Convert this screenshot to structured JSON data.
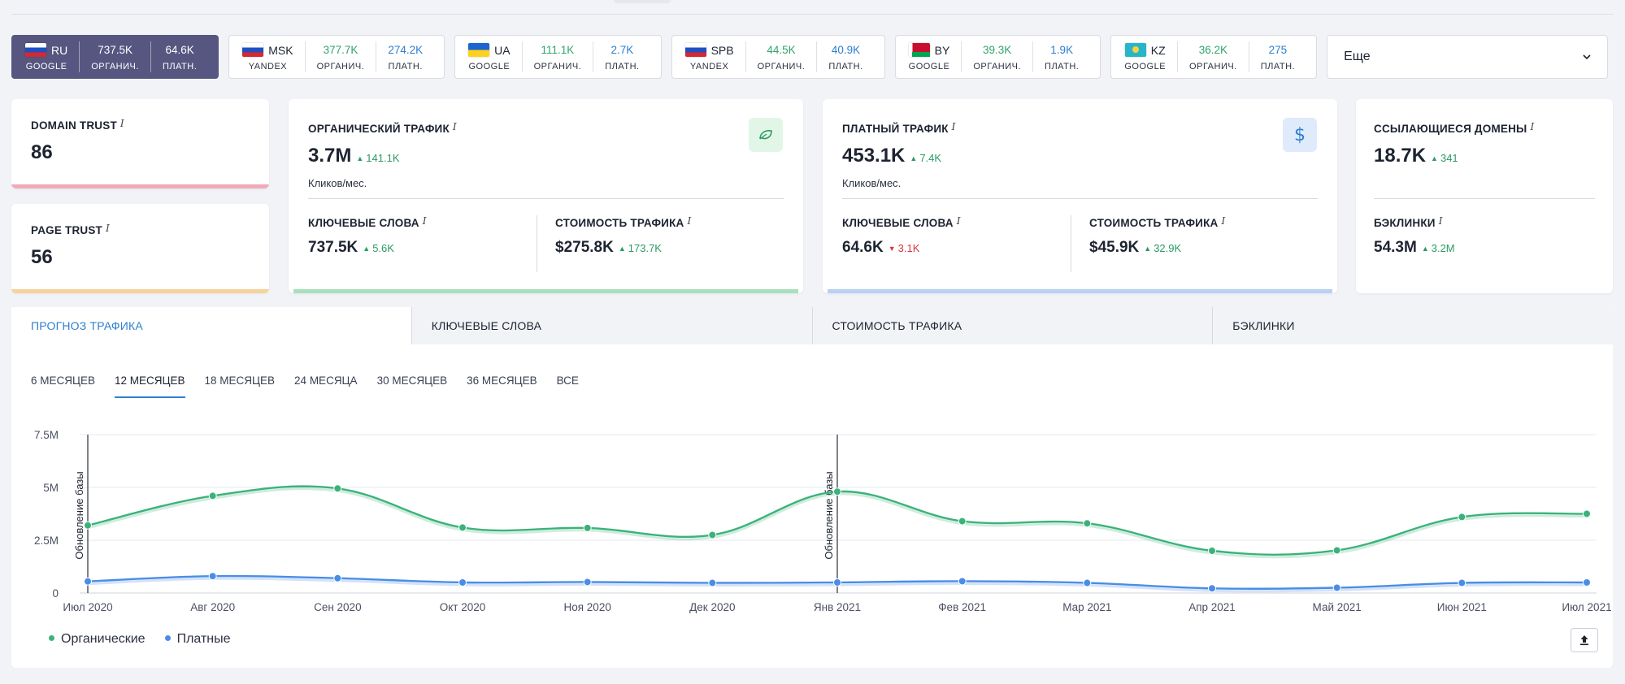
{
  "regions": [
    {
      "code": "RU",
      "engine": "GOOGLE",
      "organic": "737.5K",
      "paid": "64.6K",
      "org_label": "ОРГАНИЧ.",
      "paid_label": "ПЛАТН.",
      "active": true
    },
    {
      "code": "MSK",
      "engine": "YANDEX",
      "organic": "377.7K",
      "paid": "274.2K",
      "org_label": "ОРГАНИЧ.",
      "paid_label": "ПЛАТН."
    },
    {
      "code": "UA",
      "engine": "GOOGLE",
      "organic": "111.1K",
      "paid": "2.7K",
      "org_label": "ОРГАНИЧ.",
      "paid_label": "ПЛАТН."
    },
    {
      "code": "SPB",
      "engine": "YANDEX",
      "organic": "44.5K",
      "paid": "40.9K",
      "org_label": "ОРГАНИЧ.",
      "paid_label": "ПЛАТН."
    },
    {
      "code": "BY",
      "engine": "GOOGLE",
      "organic": "39.3K",
      "paid": "1.9K",
      "org_label": "ОРГАНИЧ.",
      "paid_label": "ПЛАТН."
    },
    {
      "code": "KZ",
      "engine": "GOOGLE",
      "organic": "36.2K",
      "paid": "275",
      "org_label": "ОРГАНИЧ.",
      "paid_label": "ПЛАТН."
    }
  ],
  "more_label": "Еще",
  "info_glyph": "i",
  "domain_trust": {
    "title": "DOMAIN TRUST",
    "value": "86",
    "color": "#f2a9b8"
  },
  "page_trust": {
    "title": "PAGE TRUST",
    "value": "56",
    "color": "#f5d39b"
  },
  "organic": {
    "title": "ОРГАНИЧЕСКИЙ ТРАФИК",
    "value": "3.7M",
    "delta": "141.1K",
    "unit": "Кликов/мес.",
    "kw_title": "КЛЮЧЕВЫЕ СЛОВА",
    "kw_value": "737.5K",
    "kw_delta": "5.6K",
    "cost_title": "СТОИМОСТЬ ТРАФИКА",
    "cost_value": "$275.8K",
    "cost_delta": "173.7K",
    "color": "#a8e0bd",
    "icon": "leaf-icon"
  },
  "paid": {
    "title": "ПЛАТНЫЙ ТРАФИК",
    "value": "453.1K",
    "delta": "7.4K",
    "unit": "Кликов/мес.",
    "kw_title": "КЛЮЧЕВЫЕ СЛОВА",
    "kw_value": "64.6K",
    "kw_delta": "3.1K",
    "cost_title": "СТОИМОСТЬ ТРАФИКА",
    "cost_value": "$45.9K",
    "cost_delta": "32.9K",
    "color": "#b8d2f2",
    "icon": "dollar-icon"
  },
  "referring": {
    "title": "ССЫЛАЮЩИЕСЯ ДОМЕНЫ",
    "value": "18.7K",
    "delta": "341",
    "bl_title": "БЭКЛИНКИ",
    "bl_value": "54.3M",
    "bl_delta": "3.2M"
  },
  "tabs": [
    "ПРОГНОЗ ТРАФИКА",
    "КЛЮЧЕВЫЕ СЛОВА",
    "СТОИМОСТЬ ТРАФИКА",
    "БЭКЛИНКИ"
  ],
  "periods": [
    "6 МЕСЯЦЕВ",
    "12 МЕСЯЦЕВ",
    "18 МЕСЯЦЕВ",
    "24 МЕСЯЦА",
    "30 МЕСЯЦЕВ",
    "36 МЕСЯЦЕВ",
    "ВСЕ"
  ],
  "active_period": 1,
  "chart_data": {
    "type": "line",
    "categories": [
      "Июл 2020",
      "Авг 2020",
      "Сен 2020",
      "Окт 2020",
      "Ноя 2020",
      "Дек 2020",
      "Янв 2021",
      "Фев 2021",
      "Мар 2021",
      "Апр 2021",
      "Май 2021",
      "Июн 2021",
      "Июл 2021"
    ],
    "y_ticks": [
      "0",
      "2.5M",
      "5M",
      "7.5M"
    ],
    "ylim": [
      0,
      7500000
    ],
    "series": [
      {
        "name": "Органические",
        "color": "#3bb27a",
        "values": [
          3200000,
          4600000,
          4950000,
          3100000,
          3080000,
          2750000,
          4800000,
          3400000,
          3300000,
          2000000,
          2020000,
          3600000,
          3750000
        ]
      },
      {
        "name": "Платные",
        "color": "#4a8de6",
        "values": [
          550000,
          800000,
          700000,
          500000,
          520000,
          480000,
          500000,
          560000,
          480000,
          220000,
          250000,
          480000,
          500000
        ]
      }
    ],
    "annotations": [
      {
        "x": "Июл 2020",
        "label": "Обновление базы"
      },
      {
        "x": "Янв 2021",
        "label": "Обновление базы"
      }
    ],
    "grid": true,
    "legend": "bottom-left"
  }
}
